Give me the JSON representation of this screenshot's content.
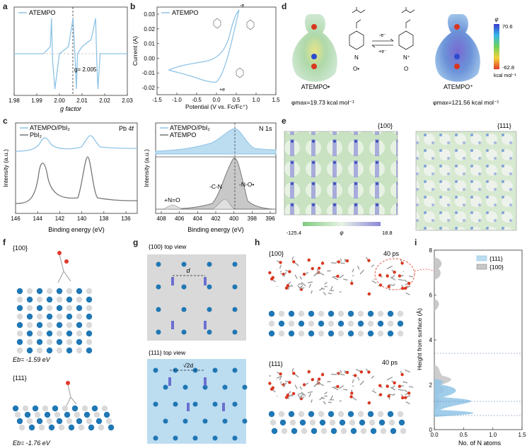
{
  "panel_labels": [
    "a",
    "b",
    "c",
    "d",
    "e",
    "f",
    "g",
    "h",
    "i"
  ],
  "chart_data": [
    {
      "id": "a",
      "type": "line",
      "legend": [
        "ATEMPO"
      ],
      "xlabel": "g factor",
      "ylabel": "",
      "xlim": [
        1.98,
        2.03
      ],
      "xticks": [
        "1.98",
        "1.99",
        "2.00",
        "2.01",
        "2.02",
        "2.03"
      ],
      "annotation": "g= 2.005",
      "marker_x": 2.005,
      "series": [
        {
          "x": [
            1.98,
            1.993,
            1.996,
            1.9965,
            1.997,
            1.998,
            2.0,
            2.004,
            2.006,
            2.007,
            2.0075,
            2.008,
            2.01,
            2.014,
            2.016,
            2.0165,
            2.017,
            2.018,
            2.02,
            2.03
          ],
          "y": [
            0,
            0,
            0.2,
            1,
            -0.2,
            -1,
            0,
            0.2,
            1,
            -0.2,
            -1,
            0,
            0.2,
            0.4,
            1,
            -0.2,
            -1,
            0,
            0,
            0
          ]
        }
      ]
    },
    {
      "id": "b",
      "type": "line",
      "legend": [
        "ATEMPO"
      ],
      "xlabel": "Potential (V vs. Fc/Fc⁺)",
      "ylabel": "Current (A)",
      "xlim": [
        -1.5,
        1.5
      ],
      "ylim": [
        -0.025,
        0.035
      ],
      "xticks": [
        "-1.5",
        "-1.0",
        "-0.5",
        "0.0",
        "0.5",
        "1.0",
        "1.5"
      ],
      "yticks": [
        "-0.02",
        "-0.01",
        "0.00",
        "0.01",
        "0.02",
        "0.03"
      ],
      "electron_label": "-e",
      "electron_label2": "+e"
    },
    {
      "id": "c1",
      "type": "line",
      "legend": [
        "ATEMPO/PbI₂",
        "PbI₂"
      ],
      "title": "Pb 4f",
      "xlabel": "Binding energy (eV)",
      "ylabel": "Intensity (a.u.)",
      "xticks": [
        "146",
        "144",
        "142",
        "140",
        "138",
        "136"
      ],
      "xlim": [
        146,
        135
      ]
    },
    {
      "id": "c2",
      "type": "line",
      "legend": [
        "ATEMPO/PbI₂",
        "ATEMPO"
      ],
      "title": "N 1s",
      "xlabel": "Binding energy (eV)",
      "ylabel": "Intensity (a.u.)",
      "xticks": [
        "408",
        "406",
        "404",
        "402",
        "400",
        "398",
        "396"
      ],
      "xlim": [
        409,
        396
      ],
      "annotations": [
        "-N-O•",
        "-C-N",
        "+N=O"
      ]
    },
    {
      "id": "i",
      "type": "bar",
      "legend": [
        "{111}",
        "{100}"
      ],
      "xlabel": "No. of N atoms",
      "ylabel": "Height from surface (Å)",
      "xlim": [
        0,
        1.5
      ],
      "ylim": [
        0,
        8
      ],
      "xticks": [
        "0.0",
        "0.5",
        "1.0",
        "1.5"
      ],
      "yticks": [
        "0",
        "2",
        "4",
        "6",
        "8"
      ]
    }
  ],
  "panel_d": {
    "left_name": "ATEMPO•",
    "right_name": "ATEMPO⁺",
    "left_phi": "φmax=19.73 kcal mol⁻¹",
    "right_phi": "φmax=121.56 kcal mol⁻¹",
    "arrow_top": "-e⁻",
    "arrow_bottom": "+e⁻",
    "scale_title": "φ",
    "scale_max": "70.6",
    "scale_min": "-62.8",
    "scale_unit": "kcal mol⁻¹",
    "left_n": "N",
    "left_o": "O•",
    "right_n": "N⁺",
    "right_o": "O"
  },
  "panel_e": {
    "left_facet": "{100}",
    "right_facet": "{111}",
    "scale_min": "-125.4",
    "scale_mid": "φ",
    "scale_max": "18.8"
  },
  "panel_f": {
    "top_facet": "{100}",
    "top_eb": "Eb= -1.59 eV",
    "bottom_facet": "{111}",
    "bottom_eb": "Eb= -1.76 eV"
  },
  "panel_g": {
    "top_title": "{100} top view",
    "top_d": "d",
    "bottom_title": "{111} top view",
    "bottom_d": "√2d"
  },
  "panel_h": {
    "top_facet": "{100}",
    "top_time": "40 ps",
    "bottom_facet": "{111}",
    "bottom_time": "40 ps"
  },
  "colors": {
    "light_blue": "#8fc4e6",
    "gray": "#777777",
    "blue_atom": "#1f77b4",
    "gray_bg": "#d9d9d9",
    "blue_bg": "#bcdcf0"
  }
}
